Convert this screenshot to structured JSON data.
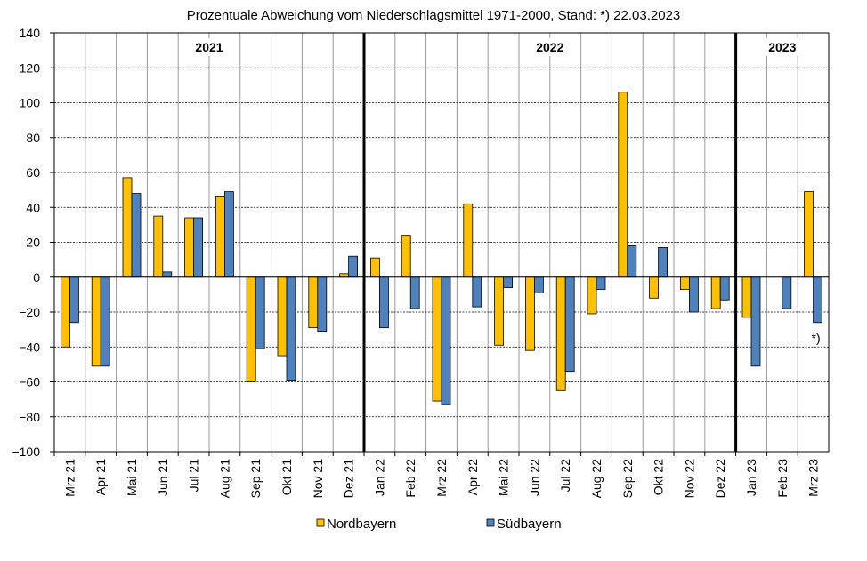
{
  "chart_data": {
    "type": "bar",
    "title": "Prozentuale Abweichung vom Niederschlagsmittel 1971-2000,  Stand: *) 22.03.2023",
    "categories": [
      "Mrz 21",
      "Apr 21",
      "Mai 21",
      "Jun 21",
      "Jul 21",
      "Aug 21",
      "Sep 21",
      "Okt 21",
      "Nov 21",
      "Dez 21",
      "Jan 22",
      "Feb 22",
      "Mrz 22",
      "Apr 22",
      "Mai 22",
      "Jun 22",
      "Jul 22",
      "Aug 22",
      "Sep 22",
      "Okt 22",
      "Nov 22",
      "Dez 22",
      "Jan 23",
      "Feb 23",
      "Mrz 23"
    ],
    "series": [
      {
        "name": "Nordbayern",
        "color": "#FFC000",
        "values": [
          -40,
          -51,
          57,
          35,
          34,
          46,
          -60,
          -45,
          -29,
          2,
          11,
          24,
          -71,
          42,
          -39,
          -42,
          -65,
          -21,
          106,
          -12,
          -7,
          -18,
          -23,
          0,
          49
        ]
      },
      {
        "name": "Südbayern",
        "color": "#4F81BD",
        "values": [
          -26,
          -51,
          48,
          3,
          34,
          49,
          -41,
          -59,
          -31,
          12,
          -29,
          -18,
          -73,
          -17,
          -6,
          -9,
          -54,
          -7,
          18,
          17,
          -20,
          -13,
          -51,
          -18,
          -26
        ]
      }
    ],
    "ylim": [
      -100,
      140
    ],
    "yticks": [
      -100,
      -80,
      -60,
      -40,
      -20,
      0,
      20,
      40,
      60,
      80,
      100,
      120,
      140
    ],
    "grid": true,
    "legend_position": "bottom",
    "year_labels": [
      {
        "label": "2021",
        "start_index": 0,
        "end_index": 9
      },
      {
        "label": "2022",
        "start_index": 10,
        "end_index": 21
      },
      {
        "label": "2023",
        "start_index": 22,
        "end_index": 24
      }
    ],
    "annotation": {
      "text": "*)",
      "category_index": 24
    }
  }
}
